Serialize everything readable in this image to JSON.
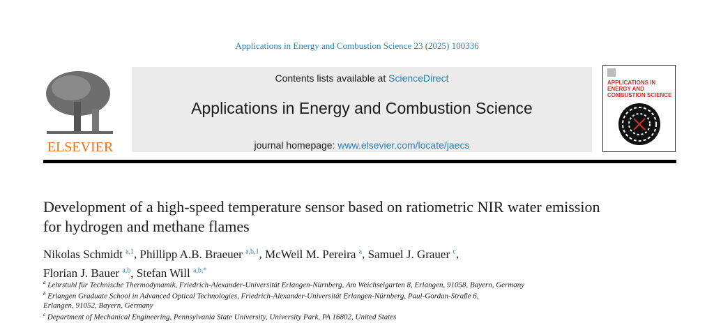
{
  "header": {
    "citation": "Applications in Energy and Combustion Science 23 (2025) 100336",
    "contents_prefix": "Contents lists available at ",
    "contents_link": "ScienceDirect",
    "journal_title": "Applications in Energy and Combustion Science",
    "homepage_prefix": "journal homepage: ",
    "homepage_link": "www.elsevier.com/locate/jaecs",
    "publisher": "ELSEVIER",
    "cover_text": "APPLICATIONS IN ENERGY AND COMBUSTION SCIENCE"
  },
  "article": {
    "title": "Development of a high-speed temperature sensor based on ratiometric NIR water emission for hydrogen and methane flames",
    "authors": [
      {
        "name": "Nikolas Schmidt",
        "sup": "a,1",
        "sep": ", "
      },
      {
        "name": "Phillipp A.B. Braeuer",
        "sup": "a,b,1",
        "sep": ", "
      },
      {
        "name": "McWeil M. Pereira",
        "sup": "a",
        "sep": ", "
      },
      {
        "name": "Samuel J. Grauer",
        "sup": "c",
        "sep": ","
      },
      {
        "name": "Florian J. Bauer",
        "sup": "a,b",
        "sep": ", "
      },
      {
        "name": "Stefan Will",
        "sup": "a,b,*",
        "sep": ""
      }
    ],
    "affiliations": [
      {
        "mark": "a",
        "text": "Lehrstuhl für Technische Thermodynamik, Friedrich-Alexander-Universität Erlangen-Nürnberg, Am Weichselgarten 8, Erlangen, 91058, Bayern, Germany"
      },
      {
        "mark": "b",
        "text": "Erlangen Graduate School in Advanced Optical Technologies, Friedrich-Alexander-Universität Erlangen-Nürnberg, Paul-Gordan-Straße 6,"
      },
      {
        "mark": "",
        "text": "Erlangen, 91052, Bayern, Germany"
      },
      {
        "mark": "c",
        "text": "Department of Mechanical Engineering, Pennsylvania State University, University Park, PA 16802, United States"
      }
    ]
  },
  "colors": {
    "link": "#2c7fb0",
    "elsevier_orange": "#e9711c",
    "banner": "#ececec"
  }
}
